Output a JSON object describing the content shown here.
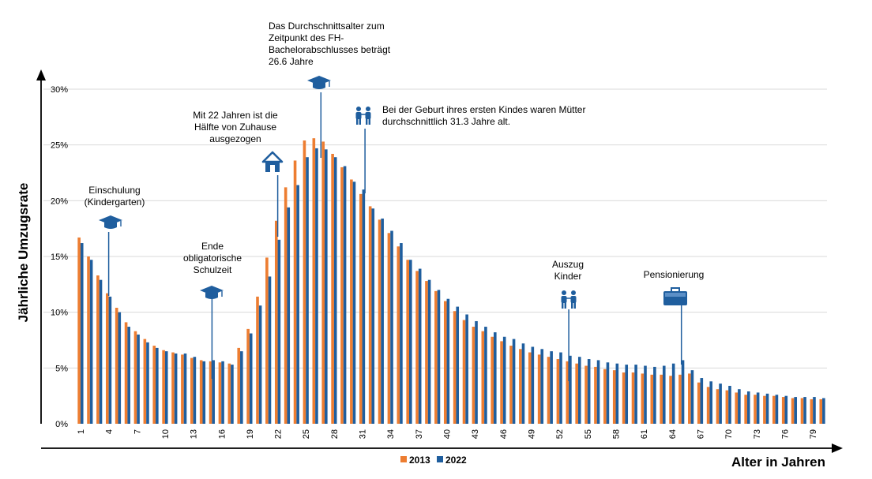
{
  "chart_data": {
    "type": "bar",
    "ylabel": "Jährliche Umzugsrate",
    "xlabel": "Alter in Jahren",
    "ylim": [
      0,
      30
    ],
    "yticks": [
      0,
      5,
      10,
      15,
      20,
      25,
      30
    ],
    "ytick_labels": [
      "0%",
      "5%",
      "10%",
      "15%",
      "20%",
      "25%",
      "30%"
    ],
    "grid": true,
    "legend_position": "bottom-center",
    "categories": [
      1,
      2,
      3,
      4,
      5,
      6,
      7,
      8,
      9,
      10,
      11,
      12,
      13,
      14,
      15,
      16,
      17,
      18,
      19,
      20,
      21,
      22,
      23,
      24,
      25,
      26,
      27,
      28,
      29,
      30,
      31,
      32,
      33,
      34,
      35,
      36,
      37,
      38,
      39,
      40,
      41,
      42,
      43,
      44,
      45,
      46,
      47,
      48,
      49,
      50,
      51,
      52,
      53,
      54,
      55,
      56,
      57,
      58,
      59,
      60,
      61,
      62,
      63,
      64,
      65,
      66,
      67,
      68,
      69,
      70,
      71,
      72,
      73,
      74,
      75,
      76,
      77,
      78,
      79,
      80
    ],
    "xtick_labels": [
      "1",
      "4",
      "7",
      "10",
      "13",
      "16",
      "19",
      "22",
      "25",
      "28",
      "31",
      "34",
      "37",
      "40",
      "43",
      "46",
      "49",
      "52",
      "55",
      "58",
      "61",
      "64",
      "67",
      "70",
      "73",
      "76",
      "79"
    ],
    "series": [
      {
        "name": "2013",
        "color": "#ED7D31",
        "values": [
          16.7,
          15.0,
          13.3,
          11.7,
          10.4,
          9.1,
          8.3,
          7.6,
          7.0,
          6.6,
          6.4,
          6.2,
          5.9,
          5.7,
          5.6,
          5.5,
          5.4,
          6.8,
          8.5,
          11.4,
          14.9,
          18.2,
          21.2,
          23.6,
          25.4,
          25.6,
          25.3,
          24.2,
          23.0,
          21.9,
          20.6,
          19.5,
          18.3,
          17.1,
          15.9,
          14.7,
          13.7,
          12.8,
          11.9,
          11.0,
          10.1,
          9.3,
          8.7,
          8.3,
          7.8,
          7.4,
          7.0,
          6.7,
          6.4,
          6.2,
          6.0,
          5.8,
          5.6,
          5.4,
          5.2,
          5.1,
          4.9,
          4.8,
          4.6,
          4.6,
          4.5,
          4.4,
          4.4,
          4.3,
          4.4,
          4.5,
          3.7,
          3.3,
          3.1,
          3.0,
          2.8,
          2.6,
          2.6,
          2.5,
          2.5,
          2.4,
          2.3,
          2.3,
          2.2,
          2.2
        ]
      },
      {
        "name": "2022",
        "color": "#1F5E9E",
        "values": [
          16.2,
          14.7,
          12.9,
          11.4,
          10.0,
          8.7,
          8.0,
          7.3,
          6.8,
          6.5,
          6.3,
          6.3,
          6.0,
          5.6,
          5.7,
          5.6,
          5.3,
          6.5,
          8.1,
          10.6,
          13.2,
          16.5,
          19.4,
          21.4,
          23.9,
          24.7,
          24.6,
          23.9,
          23.1,
          21.7,
          21.0,
          19.3,
          18.4,
          17.3,
          16.2,
          14.7,
          13.9,
          12.9,
          12.0,
          11.2,
          10.5,
          9.8,
          9.2,
          8.7,
          8.2,
          7.8,
          7.6,
          7.2,
          6.9,
          6.7,
          6.5,
          6.4,
          6.1,
          6.0,
          5.8,
          5.7,
          5.5,
          5.4,
          5.3,
          5.3,
          5.2,
          5.1,
          5.2,
          5.4,
          5.7,
          4.8,
          4.1,
          3.8,
          3.6,
          3.4,
          3.1,
          2.9,
          2.8,
          2.7,
          2.6,
          2.5,
          2.4,
          2.4,
          2.4,
          2.3
        ]
      }
    ],
    "annotations": [
      {
        "id": "einschulung",
        "at_age": 4,
        "text": [
          "Einschulung",
          "(Kindergarten)"
        ],
        "icon": "graduation-cap-icon"
      },
      {
        "id": "schulzeit",
        "at_age": 15,
        "text": [
          "Ende",
          "obligatorische",
          "Schulzeit"
        ],
        "icon": "graduation-cap-icon"
      },
      {
        "id": "auszug22",
        "at_age": 22,
        "text": [
          "Mit 22 Jahren ist die",
          "Hälfte von Zuhause",
          "ausgezogen"
        ],
        "icon": "house-icon"
      },
      {
        "id": "fh",
        "at_age": 26.6,
        "text": [
          "Das Durchschnittsalter zum",
          "Zeitpunkt des FH-",
          "Bachelorabschlusses beträgt",
          "26.6 Jahre"
        ],
        "icon": "graduation-cap-icon"
      },
      {
        "id": "geburt",
        "at_age": 31.3,
        "text": [
          "Bei der Geburt ihres ersten Kindes waren Mütter",
          "durchschnittlich 31.3 Jahre alt."
        ],
        "icon": "family-icon"
      },
      {
        "id": "kinder",
        "at_age": 53,
        "text": [
          "Auszug",
          "Kinder"
        ],
        "icon": "family-icon"
      },
      {
        "id": "pension",
        "at_age": 65,
        "text": [
          "Pensionierung"
        ],
        "icon": "briefcase-icon"
      }
    ]
  }
}
